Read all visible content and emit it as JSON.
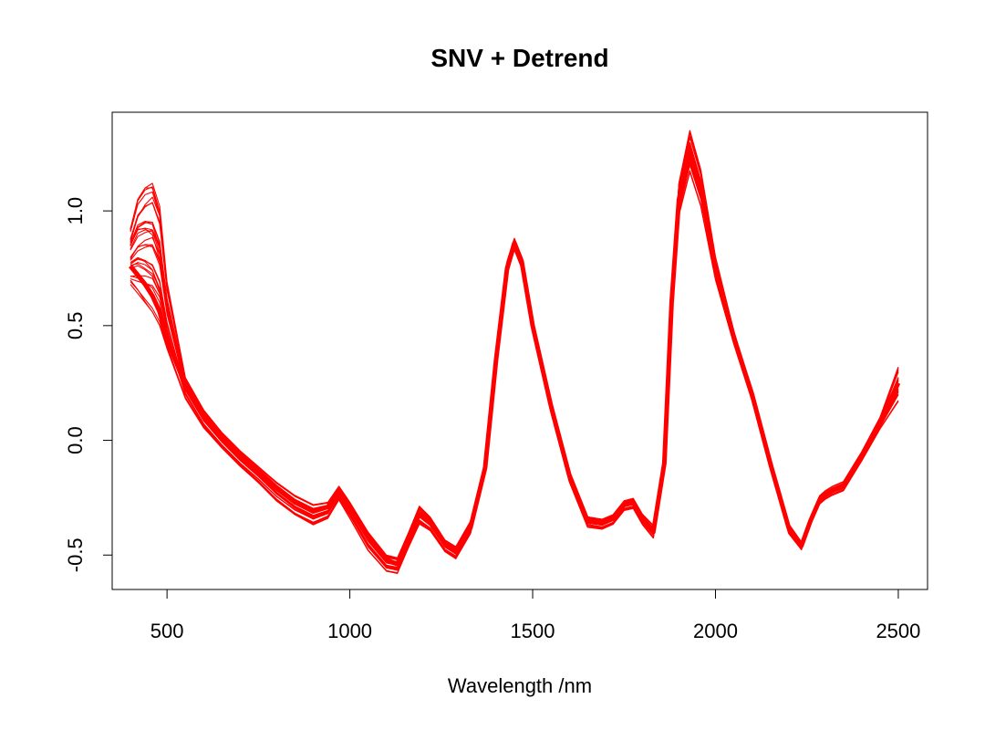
{
  "chart_data": {
    "type": "line",
    "title": "SNV + Detrend",
    "xlabel": "Wavelength /nm",
    "ylabel": "",
    "xlim": [
      350,
      2580
    ],
    "ylim": [
      -0.65,
      1.43
    ],
    "x_ticks": [
      500,
      1000,
      1500,
      2000,
      2500
    ],
    "y_ticks": [
      -0.5,
      0.0,
      0.5,
      1.0
    ],
    "x_tick_labels": [
      "500",
      "1000",
      "1500",
      "2000",
      "2500"
    ],
    "y_tick_labels": [
      "-0.5",
      "0.0",
      "0.5",
      "1.0"
    ],
    "grid": false,
    "legend": "none",
    "line_color": "#ff0000",
    "series_count": 30,
    "x": [
      400,
      420,
      440,
      460,
      480,
      500,
      550,
      600,
      650,
      700,
      750,
      800,
      850,
      900,
      940,
      970,
      1000,
      1050,
      1100,
      1130,
      1160,
      1190,
      1220,
      1260,
      1290,
      1330,
      1370,
      1400,
      1430,
      1450,
      1470,
      1500,
      1550,
      1600,
      1650,
      1690,
      1720,
      1750,
      1775,
      1800,
      1830,
      1860,
      1880,
      1900,
      1930,
      1960,
      2000,
      2050,
      2100,
      2150,
      2200,
      2235,
      2260,
      2285,
      2300,
      2320,
      2350,
      2400,
      2450,
      2500
    ],
    "envelope_center": [
      0.76,
      0.72,
      0.68,
      0.63,
      0.56,
      0.44,
      0.24,
      0.11,
      0.01,
      -0.07,
      -0.14,
      -0.21,
      -0.27,
      -0.31,
      -0.29,
      -0.22,
      -0.29,
      -0.42,
      -0.52,
      -0.54,
      -0.43,
      -0.32,
      -0.36,
      -0.45,
      -0.48,
      -0.38,
      -0.12,
      0.35,
      0.75,
      0.86,
      0.78,
      0.5,
      0.15,
      -0.15,
      -0.35,
      -0.36,
      -0.34,
      -0.28,
      -0.27,
      -0.34,
      -0.4,
      -0.1,
      0.6,
      1.05,
      1.25,
      1.1,
      0.75,
      0.45,
      0.2,
      -0.1,
      -0.38,
      -0.46,
      -0.35,
      -0.26,
      -0.24,
      -0.22,
      -0.2,
      -0.07,
      0.08,
      0.25
    ],
    "envelope_upper": [
      0.92,
      1.05,
      1.1,
      1.12,
      1.02,
      0.7,
      0.28,
      0.14,
      0.04,
      -0.04,
      -0.11,
      -0.18,
      -0.24,
      -0.28,
      -0.27,
      -0.2,
      -0.27,
      -0.4,
      -0.5,
      -0.51,
      -0.4,
      -0.28,
      -0.33,
      -0.43,
      -0.46,
      -0.35,
      -0.1,
      0.38,
      0.78,
      0.88,
      0.8,
      0.52,
      0.17,
      -0.13,
      -0.33,
      -0.34,
      -0.32,
      -0.26,
      -0.25,
      -0.32,
      -0.37,
      -0.07,
      0.64,
      1.12,
      1.35,
      1.18,
      0.8,
      0.48,
      0.22,
      -0.08,
      -0.36,
      -0.44,
      -0.33,
      -0.24,
      -0.22,
      -0.2,
      -0.18,
      -0.05,
      0.1,
      0.32
    ],
    "envelope_lower": [
      0.68,
      0.64,
      0.6,
      0.56,
      0.5,
      0.4,
      0.18,
      0.05,
      -0.04,
      -0.12,
      -0.19,
      -0.27,
      -0.33,
      -0.37,
      -0.34,
      -0.26,
      -0.34,
      -0.48,
      -0.57,
      -0.58,
      -0.47,
      -0.37,
      -0.4,
      -0.49,
      -0.52,
      -0.41,
      -0.15,
      0.32,
      0.72,
      0.83,
      0.75,
      0.47,
      0.12,
      -0.18,
      -0.38,
      -0.39,
      -0.37,
      -0.31,
      -0.3,
      -0.37,
      -0.43,
      -0.13,
      0.56,
      0.98,
      1.17,
      1.02,
      0.7,
      0.42,
      0.17,
      -0.13,
      -0.41,
      -0.48,
      -0.37,
      -0.28,
      -0.26,
      -0.24,
      -0.22,
      -0.09,
      0.05,
      0.17
    ]
  }
}
